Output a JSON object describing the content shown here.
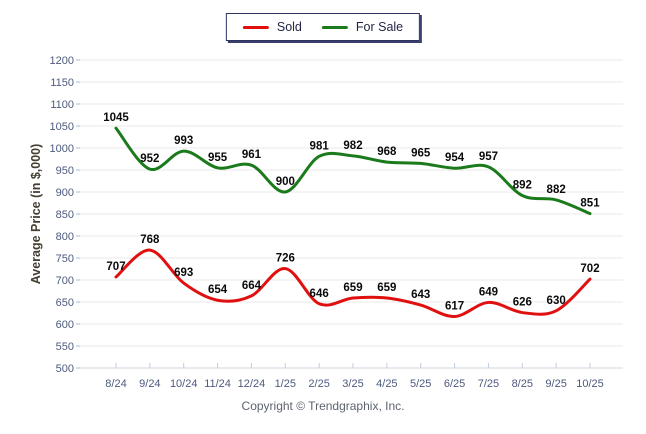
{
  "chart_data": {
    "type": "line",
    "categories": [
      "8/24",
      "9/24",
      "10/24",
      "11/24",
      "12/24",
      "1/25",
      "2/25",
      "3/25",
      "4/25",
      "5/25",
      "6/25",
      "7/25",
      "8/25",
      "9/25",
      "10/25"
    ],
    "series": [
      {
        "name": "Sold",
        "color": "#e01010",
        "values": [
          707,
          768,
          693,
          654,
          664,
          726,
          646,
          659,
          659,
          643,
          617,
          649,
          626,
          630,
          702
        ]
      },
      {
        "name": "For Sale",
        "color": "#1b7a1b",
        "values": [
          1045,
          952,
          993,
          955,
          961,
          900,
          981,
          982,
          968,
          965,
          954,
          957,
          892,
          882,
          851
        ]
      }
    ],
    "title": "",
    "xlabel": "",
    "ylabel": "Average Price (in $,000)",
    "ylim": [
      500,
      1200
    ],
    "ytick_step": 50,
    "grid": true,
    "legend_position": "top-center",
    "curve": "spline"
  },
  "footer": {
    "text": "Copyright © Trendgraphix, Inc."
  },
  "colors": {
    "gridline": "#e9e9e9",
    "axis_line": "#cfd4dc",
    "axis_tick": "#a9bbd6",
    "bottom_tick": "#c3cbd9",
    "tick_label": "#4d5a7d",
    "data_label": "#0a0a0a",
    "ylabel_text": "#443e33",
    "legend_border": "#2e3360",
    "footer_text": "#5d6470"
  }
}
